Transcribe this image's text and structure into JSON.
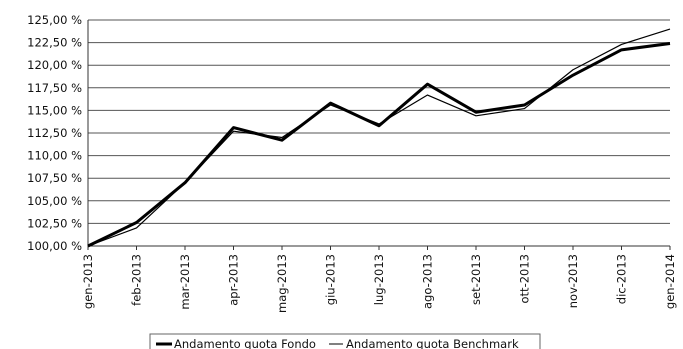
{
  "chart_data": {
    "type": "line",
    "title": "",
    "xlabel": "",
    "ylabel": "",
    "categories": [
      "gen-2013",
      "feb-2013",
      "mar-2013",
      "apr-2013",
      "mag-2013",
      "giu-2013",
      "lug-2013",
      "ago-2013",
      "set-2013",
      "ott-2013",
      "nov-2013",
      "dic-2013",
      "gen-2014"
    ],
    "y_ticks": [
      "100,00 %",
      "102,50 %",
      "105,00 %",
      "107,50 %",
      "110,00 %",
      "112,50 %",
      "115,00 %",
      "117,50 %",
      "120,00 %",
      "122,50 %",
      "125,00 %"
    ],
    "ylim": [
      100,
      125
    ],
    "grid": true,
    "legend_position": "bottom",
    "series": [
      {
        "name": "Andamento quota Fondo",
        "color": "#000000",
        "line_weight": "thick",
        "values": [
          100.0,
          102.6,
          107.0,
          113.1,
          111.7,
          115.8,
          113.3,
          117.9,
          114.8,
          115.6,
          118.9,
          121.7,
          122.4
        ]
      },
      {
        "name": "Andamento quota Benchmark",
        "color": "#000000",
        "line_weight": "thin",
        "values": [
          100.0,
          102.0,
          107.0,
          112.7,
          112.0,
          115.6,
          113.5,
          116.7,
          114.4,
          115.2,
          119.5,
          122.3,
          124.0
        ]
      }
    ]
  }
}
